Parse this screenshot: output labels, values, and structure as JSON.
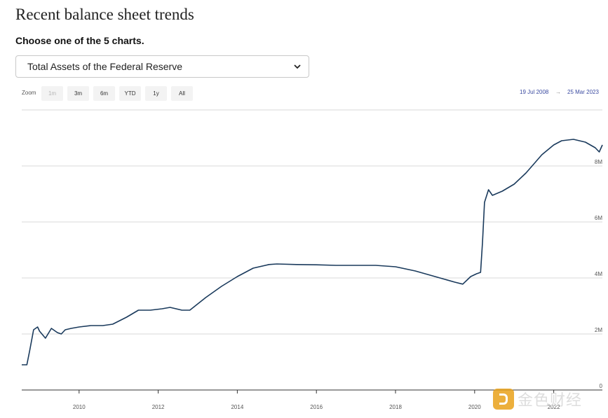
{
  "page": {
    "title": "Recent balance sheet trends",
    "prompt": "Choose one of the 5 charts.",
    "selected_chart": "Total Assets of the Federal Reserve"
  },
  "zoom": {
    "label": "Zoom",
    "buttons": [
      {
        "label": "1m",
        "disabled": true
      },
      {
        "label": "3m",
        "disabled": false
      },
      {
        "label": "6m",
        "disabled": false
      },
      {
        "label": "YTD",
        "disabled": false
      },
      {
        "label": "1y",
        "disabled": false
      },
      {
        "label": "All",
        "disabled": false
      }
    ]
  },
  "range": {
    "from": "19 Jul 2008",
    "arrow": "→",
    "to": "25 Mar 2023"
  },
  "watermark": {
    "text": "金色财经",
    "icon": "jinse-logo-icon"
  },
  "colors": {
    "line": "#1a3a5c",
    "grid": "#d9d9d9",
    "range_text": "#3a4aa0"
  },
  "chart_data": {
    "type": "line",
    "title": "",
    "xlabel": "",
    "ylabel": "",
    "xlim": [
      2008.55,
      2023.23
    ],
    "ylim": [
      0,
      10000000
    ],
    "grid": true,
    "x_ticks": [
      2010,
      2012,
      2014,
      2016,
      2018,
      2020,
      2022
    ],
    "x_tick_labels": [
      "2010",
      "2012",
      "2014",
      "2016",
      "2018",
      "2020",
      "2022"
    ],
    "y_ticks": [
      0,
      2000000,
      4000000,
      6000000,
      8000000
    ],
    "y_tick_labels": [
      "0",
      "2M",
      "4M",
      "6M",
      "8M"
    ],
    "series": [
      {
        "name": "",
        "x": [
          2008.55,
          2008.68,
          2008.75,
          2008.85,
          2008.95,
          2009.0,
          2009.15,
          2009.3,
          2009.45,
          2009.55,
          2009.65,
          2009.8,
          2010.0,
          2010.3,
          2010.6,
          2010.85,
          2011.2,
          2011.5,
          2011.8,
          2012.1,
          2012.3,
          2012.6,
          2012.8,
          2013.2,
          2013.6,
          2014.0,
          2014.4,
          2014.8,
          2015.0,
          2015.5,
          2016.0,
          2016.5,
          2017.0,
          2017.5,
          2018.0,
          2018.5,
          2019.0,
          2019.5,
          2019.7,
          2019.9,
          2020.05,
          2020.15,
          2020.2,
          2020.25,
          2020.35,
          2020.45,
          2020.7,
          2021.0,
          2021.3,
          2021.7,
          2022.0,
          2022.2,
          2022.5,
          2022.8,
          2023.05,
          2023.15,
          2023.23
        ],
        "y": [
          900000,
          900000,
          1400000,
          2150000,
          2250000,
          2100000,
          1850000,
          2200000,
          2050000,
          2000000,
          2150000,
          2200000,
          2250000,
          2300000,
          2300000,
          2350000,
          2600000,
          2850000,
          2850000,
          2900000,
          2950000,
          2850000,
          2850000,
          3300000,
          3700000,
          4050000,
          4350000,
          4480000,
          4500000,
          4480000,
          4470000,
          4450000,
          4450000,
          4450000,
          4400000,
          4250000,
          4050000,
          3850000,
          3780000,
          4050000,
          4150000,
          4200000,
          5300000,
          6700000,
          7150000,
          6950000,
          7100000,
          7350000,
          7750000,
          8400000,
          8750000,
          8900000,
          8950000,
          8850000,
          8650000,
          8500000,
          8750000
        ]
      }
    ]
  }
}
